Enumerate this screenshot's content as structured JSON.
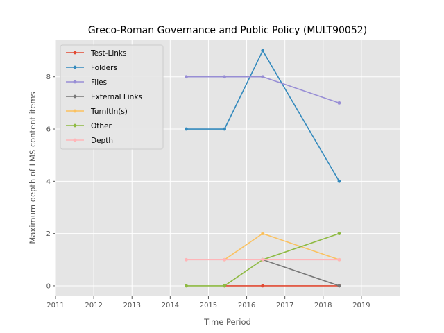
{
  "chart_data": {
    "type": "line",
    "title": "Greco-Roman Governance and Public Policy (MULT90052)",
    "xlabel": "Time Period",
    "ylabel": "Maximum depth of LMS content items",
    "xlim": [
      2011,
      2020
    ],
    "ylim": [
      -0.4,
      9.4
    ],
    "xticks": [
      "2011",
      "2012",
      "2013",
      "2014",
      "2015",
      "2016",
      "2017",
      "2018",
      "2019"
    ],
    "yticks": [
      "0",
      "2",
      "4",
      "6",
      "8"
    ],
    "grid": true,
    "legend_position": "upper-left",
    "background": "#e5e5e5",
    "x": [
      2014.42,
      2015.42,
      2016.42,
      2018.42
    ],
    "series": [
      {
        "name": "Test-Links",
        "color": "#e24a33",
        "values": [
          null,
          0,
          0,
          0
        ]
      },
      {
        "name": "Folders",
        "color": "#348abd",
        "values": [
          6,
          6,
          9,
          4
        ]
      },
      {
        "name": "Files",
        "color": "#988ed5",
        "values": [
          8,
          8,
          8,
          7
        ]
      },
      {
        "name": "External Links",
        "color": "#777777",
        "values": [
          null,
          null,
          1,
          0
        ]
      },
      {
        "name": "TurnItIn(s)",
        "color": "#fbc15e",
        "values": [
          null,
          1,
          2,
          1
        ]
      },
      {
        "name": "Other",
        "color": "#8eba42",
        "values": [
          0,
          0,
          1,
          2
        ]
      },
      {
        "name": "Depth",
        "color": "#ffb5b8",
        "values": [
          1,
          1,
          1,
          1
        ]
      }
    ]
  }
}
